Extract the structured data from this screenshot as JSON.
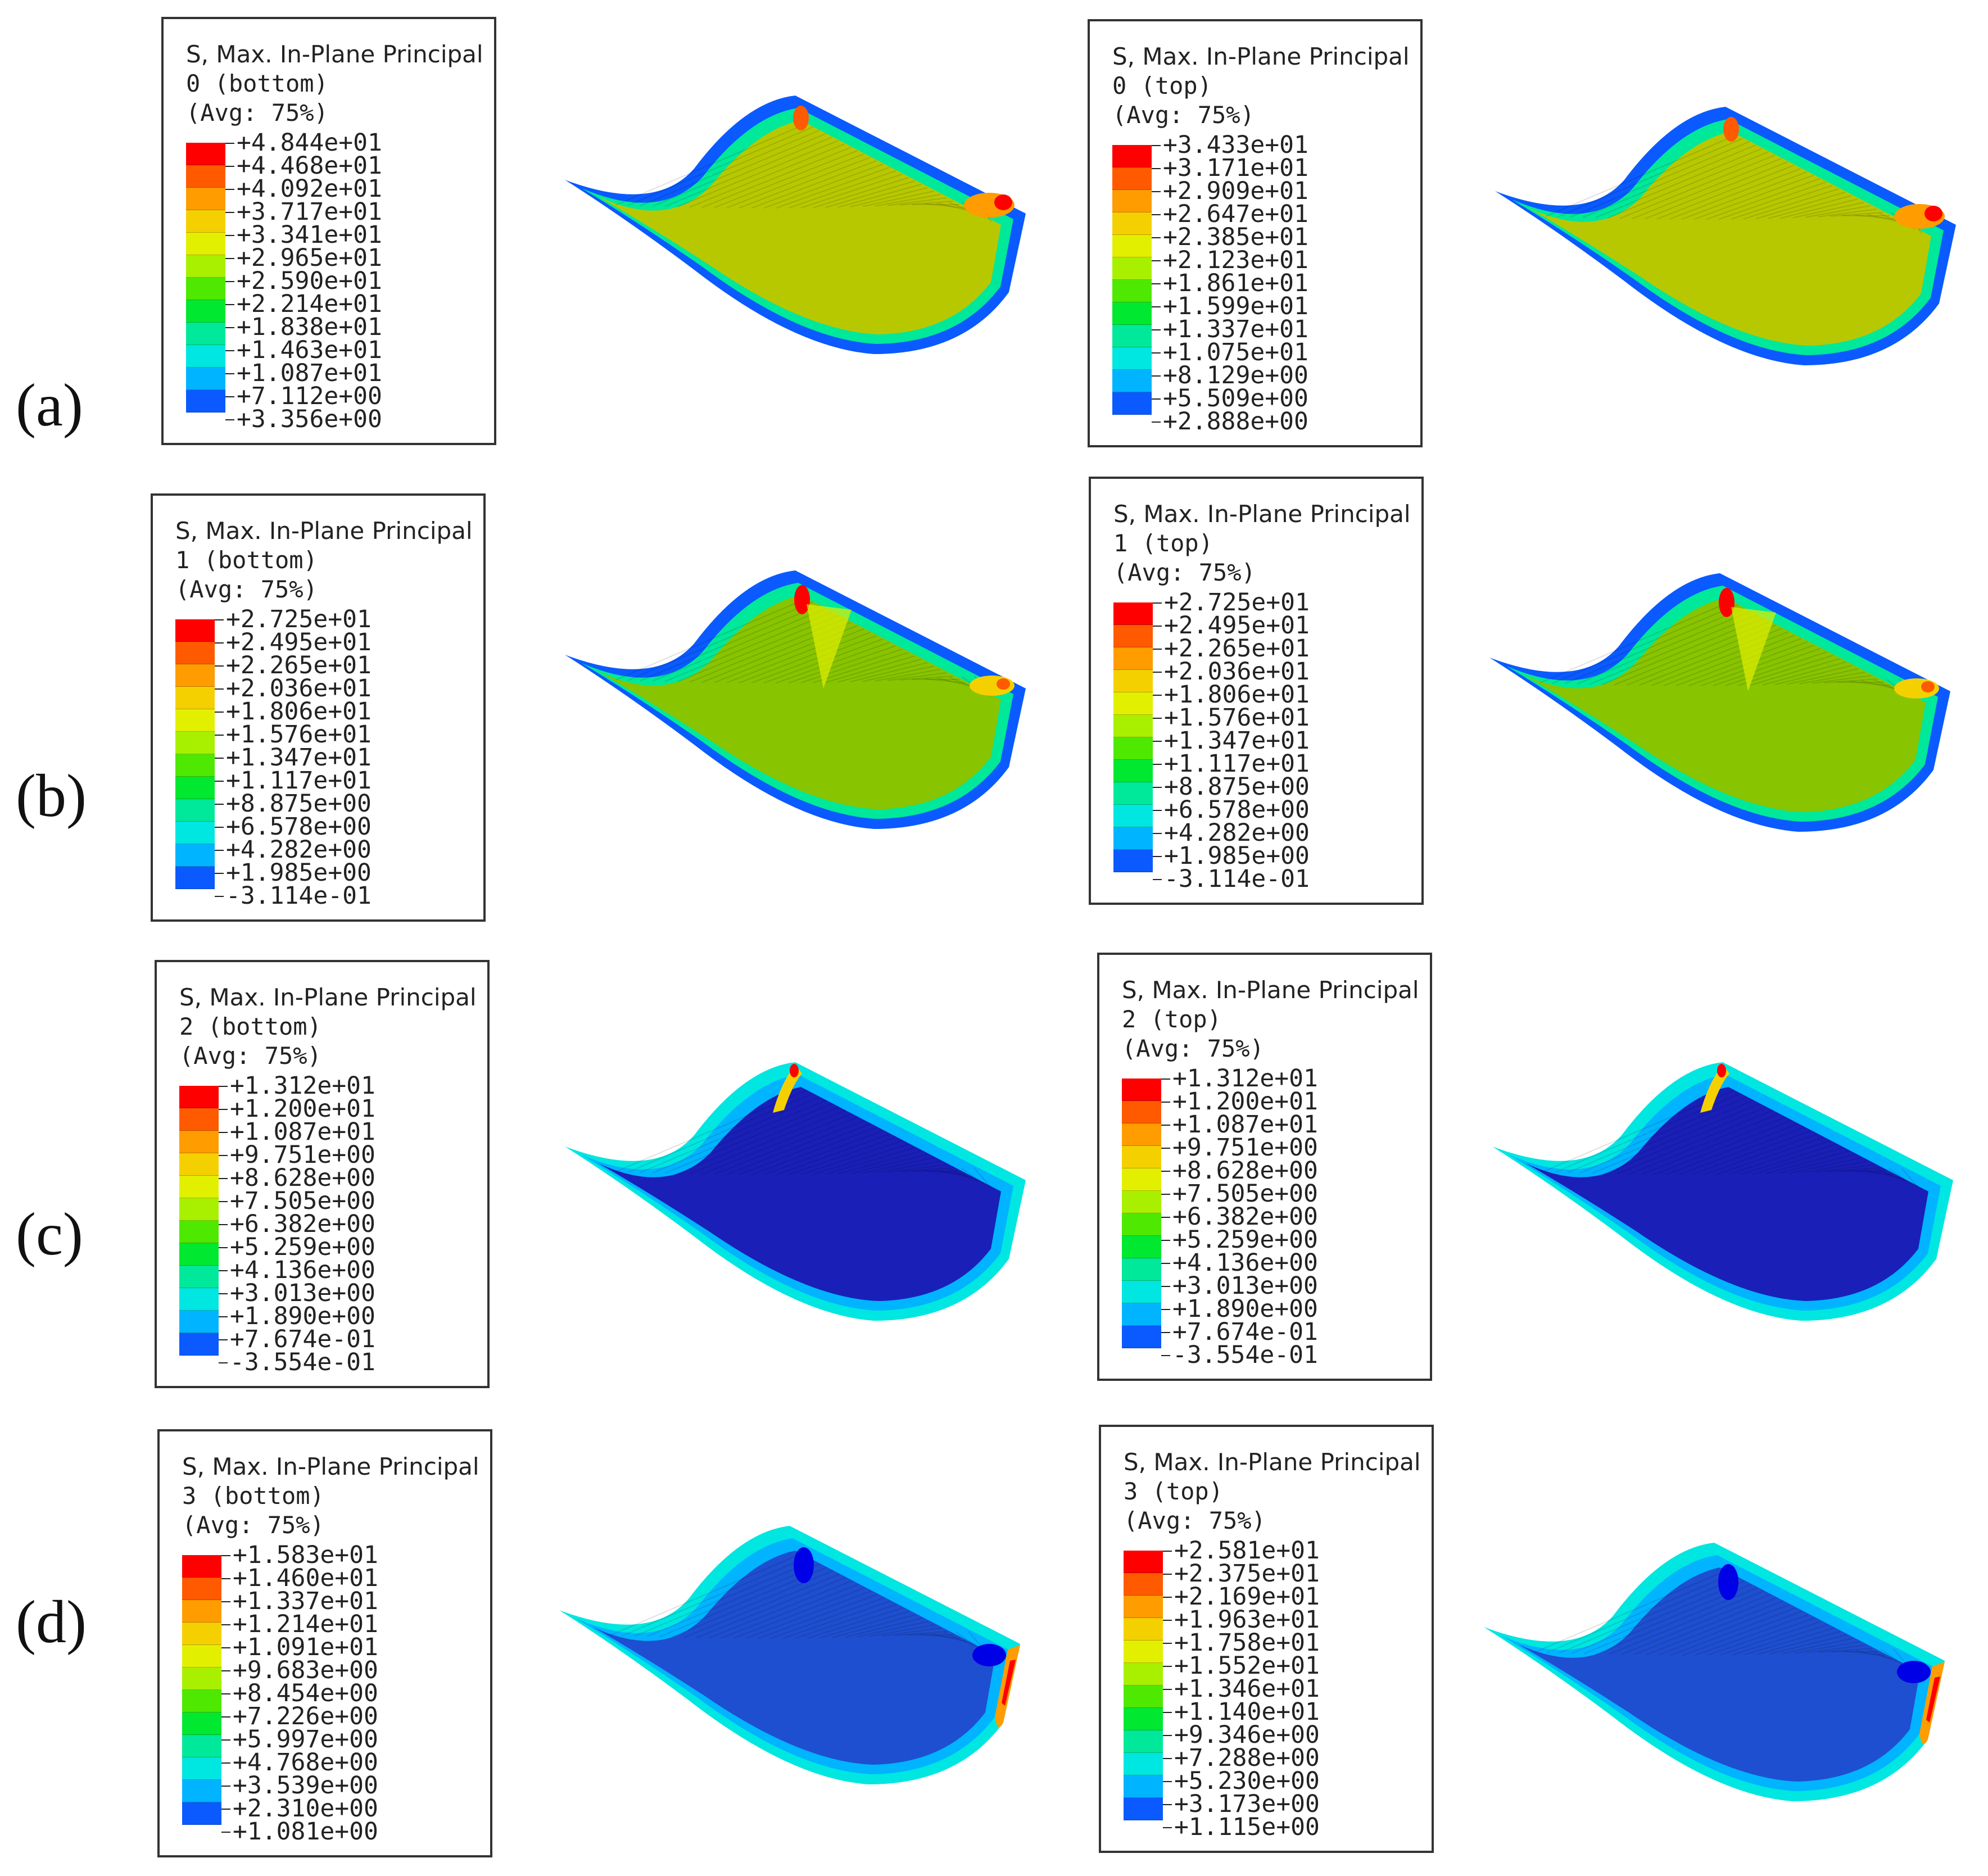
{
  "rows": [
    {
      "label": "(a)",
      "bottom": {
        "title": "S, Max. In-Plane Principal",
        "layer": "0 (bottom)",
        "avg": "(Avg: 75%)",
        "values": [
          "+4.844e+01",
          "+4.468e+01",
          "+4.092e+01",
          "+3.717e+01",
          "+3.341e+01",
          "+2.965e+01",
          "+2.590e+01",
          "+2.214e+01",
          "+1.838e+01",
          "+1.463e+01",
          "+1.087e+01",
          "+7.112e+00",
          "+3.356e+00"
        ]
      },
      "top": {
        "title": "S, Max. In-Plane Principal",
        "layer": "0 (top)",
        "avg": "(Avg: 75%)",
        "values": [
          "+3.433e+01",
          "+3.171e+01",
          "+2.909e+01",
          "+2.647e+01",
          "+2.385e+01",
          "+2.123e+01",
          "+1.861e+01",
          "+1.599e+01",
          "+1.337e+01",
          "+1.075e+01",
          "+8.129e+00",
          "+5.509e+00",
          "+2.888e+00"
        ]
      },
      "surface_color": "#b8c800"
    },
    {
      "label": "(b)",
      "bottom": {
        "title": "S, Max. In-Plane Principal",
        "layer": "1 (bottom)",
        "avg": "(Avg: 75%)",
        "values": [
          "+2.725e+01",
          "+2.495e+01",
          "+2.265e+01",
          "+2.036e+01",
          "+1.806e+01",
          "+1.576e+01",
          "+1.347e+01",
          "+1.117e+01",
          "+8.875e+00",
          "+6.578e+00",
          "+4.282e+00",
          "+1.985e+00",
          "-3.114e-01"
        ]
      },
      "top": {
        "title": "S, Max. In-Plane Principal",
        "layer": "1 (top)",
        "avg": "(Avg: 75%)",
        "values": [
          "+2.725e+01",
          "+2.495e+01",
          "+2.265e+01",
          "+2.036e+01",
          "+1.806e+01",
          "+1.576e+01",
          "+1.347e+01",
          "+1.117e+01",
          "+8.875e+00",
          "+6.578e+00",
          "+4.282e+00",
          "+1.985e+00",
          "-3.114e-01"
        ]
      },
      "surface_color": "#88c400"
    },
    {
      "label": "(c)",
      "bottom": {
        "title": "S, Max. In-Plane Principal",
        "layer": "2 (bottom)",
        "avg": "(Avg: 75%)",
        "values": [
          "+1.312e+01",
          "+1.200e+01",
          "+1.087e+01",
          "+9.751e+00",
          "+8.628e+00",
          "+7.505e+00",
          "+6.382e+00",
          "+5.259e+00",
          "+4.136e+00",
          "+3.013e+00",
          "+1.890e+00",
          "+7.674e-01",
          "-3.554e-01"
        ]
      },
      "top": {
        "title": "S, Max. In-Plane Principal",
        "layer": "2 (top)",
        "avg": "(Avg: 75%)",
        "values": [
          "+1.312e+01",
          "+1.200e+01",
          "+1.087e+01",
          "+9.751e+00",
          "+8.628e+00",
          "+7.505e+00",
          "+6.382e+00",
          "+5.259e+00",
          "+4.136e+00",
          "+3.013e+00",
          "+1.890e+00",
          "+7.674e-01",
          "-3.554e-01"
        ]
      },
      "surface_color": "#1a1fb8"
    },
    {
      "label": "(d)",
      "bottom": {
        "title": "S, Max. In-Plane Principal",
        "layer": "3 (bottom)",
        "avg": "(Avg: 75%)",
        "values": [
          "+1.583e+01",
          "+1.460e+01",
          "+1.337e+01",
          "+1.214e+01",
          "+1.091e+01",
          "+9.683e+00",
          "+8.454e+00",
          "+7.226e+00",
          "+5.997e+00",
          "+4.768e+00",
          "+3.539e+00",
          "+2.310e+00",
          "+1.081e+00"
        ]
      },
      "top": {
        "title": "S, Max. In-Plane Principal",
        "layer": "3 (top)",
        "avg": "(Avg: 75%)",
        "values": [
          "+2.581e+01",
          "+2.375e+01",
          "+2.169e+01",
          "+1.963e+01",
          "+1.758e+01",
          "+1.552e+01",
          "+1.346e+01",
          "+1.140e+01",
          "+9.346e+00",
          "+7.288e+00",
          "+5.230e+00",
          "+3.173e+00",
          "+1.115e+00"
        ]
      },
      "surface_color": "#1e4fd0"
    }
  ],
  "colormap": [
    "#ff0000",
    "#ff5a00",
    "#ff9c00",
    "#f5d000",
    "#e2f000",
    "#a8f000",
    "#4ee800",
    "#00e830",
    "#00e89a",
    "#00e6e0",
    "#00b4ff",
    "#0a5aff",
    "#0000e6"
  ]
}
